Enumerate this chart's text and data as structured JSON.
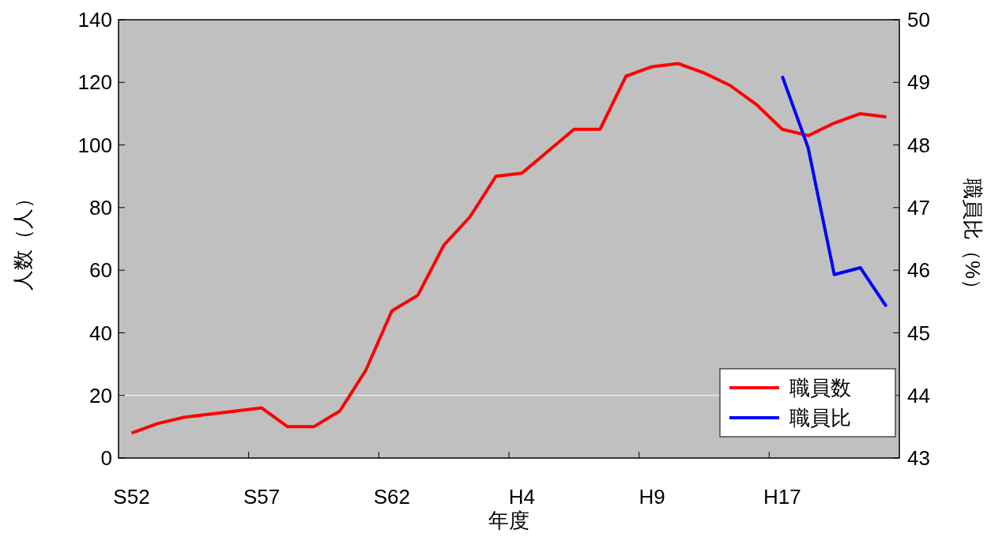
{
  "chart_data": {
    "type": "line",
    "xlabel": "年度",
    "ylabel": "人数（人）",
    "y2label": "職員比（%）",
    "categories": [
      "S52",
      null,
      null,
      null,
      null,
      "S57",
      null,
      null,
      null,
      null,
      "S62",
      null,
      null,
      null,
      null,
      "H4",
      null,
      null,
      null,
      null,
      "H9",
      null,
      null,
      null,
      null,
      "H17",
      null,
      null,
      null,
      null
    ],
    "series": [
      {
        "name": "職員数",
        "color": "#ff0000",
        "values": [
          8,
          11,
          13,
          14,
          15,
          16,
          10,
          10,
          15,
          28,
          47,
          52,
          68,
          77,
          90,
          91,
          98,
          105,
          105,
          122,
          125,
          126,
          123,
          119,
          113,
          105,
          103,
          107,
          110,
          109
        ]
      },
      {
        "name": "職員比",
        "color": "#0000ff",
        "axis": "y2",
        "values": [
          null,
          null,
          null,
          null,
          null,
          null,
          null,
          null,
          null,
          null,
          null,
          null,
          null,
          null,
          null,
          null,
          null,
          null,
          null,
          null,
          null,
          null,
          null,
          null,
          null,
          49.1,
          47.95,
          45.93,
          46.04,
          45.42
        ]
      }
    ],
    "ylim": [
      0,
      140
    ],
    "yticks": [
      0,
      20,
      40,
      60,
      80,
      100,
      120,
      140
    ],
    "y2lim": [
      43,
      50
    ],
    "y2ticks": [
      43,
      44,
      45,
      46,
      47,
      48,
      49,
      50
    ],
    "ref_lines": [
      {
        "axis": "y",
        "value": 20,
        "color": "#ffffff"
      }
    ],
    "legend": "bottom right",
    "line_style": "solid"
  }
}
